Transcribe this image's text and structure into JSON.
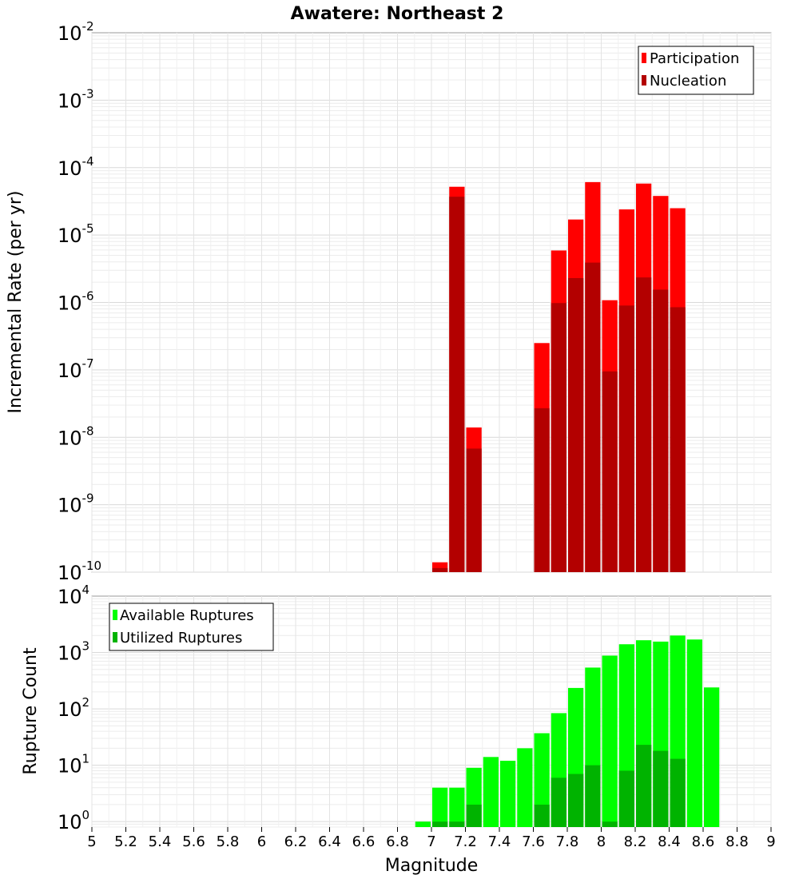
{
  "title": "Awatere: Northeast 2",
  "xlabel": "Magnitude",
  "x_ticks": [
    "5",
    "5.2",
    "5.4",
    "5.6",
    "5.8",
    "6",
    "6.2",
    "6.4",
    "6.6",
    "6.8",
    "7",
    "7.2",
    "7.4",
    "7.6",
    "7.8",
    "8",
    "8.2",
    "8.4",
    "8.6",
    "8.8",
    "9"
  ],
  "colors": {
    "participation": "#ff0000",
    "nucleation": "#b30000",
    "available": "#00ff00",
    "utilized": "#00b300"
  },
  "chart_data": [
    {
      "type": "bar",
      "ylabel": "Incremental Rate (per yr)",
      "yscale": "log",
      "ylim": [
        1e-10,
        0.01
      ],
      "xlim": [
        5,
        9
      ],
      "ytick_labels": [
        {
          "base": "10",
          "exp": "-2"
        },
        {
          "base": "10",
          "exp": "-3"
        },
        {
          "base": "10",
          "exp": "-4"
        },
        {
          "base": "10",
          "exp": "-5"
        },
        {
          "base": "10",
          "exp": "-6"
        },
        {
          "base": "10",
          "exp": "-7"
        },
        {
          "base": "10",
          "exp": "-8"
        },
        {
          "base": "10",
          "exp": "-9"
        },
        {
          "base": "10",
          "exp": "-10"
        }
      ],
      "legend": {
        "position": "top-right",
        "entries": [
          "Participation",
          "Nucleation"
        ]
      },
      "x": [
        7.05,
        7.15,
        7.25,
        7.65,
        7.75,
        7.85,
        7.95,
        8.05,
        8.15,
        8.25,
        8.35,
        8.45
      ],
      "series": [
        {
          "name": "Participation",
          "values": [
            1.4e-10,
            5.2e-05,
            1.4e-08,
            2.5e-07,
            5.9e-06,
            1.7e-05,
            6.1e-05,
            1.08e-06,
            2.4e-05,
            5.8e-05,
            3.8e-05,
            2.5e-05
          ]
        },
        {
          "name": "Nucleation",
          "values": [
            1.15e-10,
            3.7e-05,
            6.8e-09,
            2.7e-08,
            9.8e-07,
            2.3e-06,
            3.9e-06,
            9.5e-08,
            9e-07,
            2.35e-06,
            1.55e-06,
            8.5e-07
          ]
        }
      ]
    },
    {
      "type": "bar",
      "ylabel": "Rupture Count",
      "yscale": "log",
      "ylim": [
        0.8,
        10000
      ],
      "xlim": [
        5,
        9
      ],
      "ytick_labels": [
        {
          "base": "10",
          "exp": "4"
        },
        {
          "base": "10",
          "exp": "3"
        },
        {
          "base": "10",
          "exp": "2"
        },
        {
          "base": "10",
          "exp": "1"
        },
        {
          "base": "10",
          "exp": "0"
        }
      ],
      "legend": {
        "position": "top-left",
        "entries": [
          "Available Ruptures",
          "Utilized Ruptures"
        ]
      },
      "x": [
        6.95,
        7.05,
        7.15,
        7.25,
        7.35,
        7.45,
        7.55,
        7.65,
        7.75,
        7.85,
        7.95,
        8.05,
        8.15,
        8.25,
        8.35,
        8.45,
        8.55,
        8.65
      ],
      "series": [
        {
          "name": "Available Ruptures",
          "values": [
            1,
            4,
            4,
            9,
            14,
            12,
            20,
            37,
            84,
            235,
            540,
            880,
            1400,
            1650,
            1560,
            2000,
            1700,
            240
          ]
        },
        {
          "name": "Utilized Ruptures",
          "values": [
            0,
            1,
            1,
            2,
            0,
            0,
            0,
            2,
            6,
            7,
            10,
            1,
            8,
            23,
            18,
            13,
            0,
            0
          ]
        }
      ]
    }
  ]
}
